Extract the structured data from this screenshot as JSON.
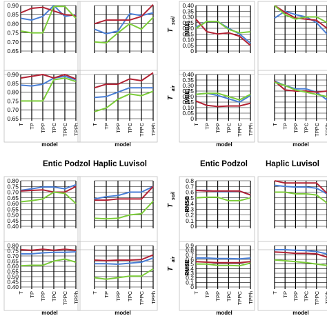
{
  "colors": {
    "blue": "#4a7fd6",
    "red": "#b22234",
    "green": "#7ccc3a",
    "grid": "#000000",
    "frame": "#bfbfbf"
  },
  "headers": [
    "Entic Podzol",
    "Haplic Luvisol",
    "Entic Podzol",
    "Haplic Luvisol"
  ],
  "categories": [
    "T",
    "TP",
    "TPP",
    "TPC",
    "TPPC",
    "TPPh"
  ],
  "xlabel": "model",
  "ylabels": {
    "mbe_soil": {
      "pre": "T",
      "sub": "soil",
      "metric": "|MBE|"
    },
    "mbe_air": {
      "pre": "T",
      "sub": "air",
      "metric": "|MBE|"
    },
    "rmse_soil": {
      "pre": "T",
      "sub": "soil",
      "metric": "RMSE"
    },
    "rmse_air": {
      "pre": "T",
      "sub": "air",
      "metric": "RMSE"
    }
  },
  "chart_data": [
    {
      "id": "ep_rsq_soil",
      "type": "line",
      "panel": "top-left",
      "categories": [
        "T",
        "TP",
        "TPP",
        "TPC",
        "TPPC",
        "TPPh"
      ],
      "ylim": [
        0.65,
        0.9
      ],
      "yticks": [
        0.65,
        0.7,
        0.75,
        0.8,
        0.85,
        0.9
      ],
      "grid": true,
      "series": [
        {
          "color": "blue",
          "values": [
            0.83,
            0.82,
            0.84,
            0.9,
            0.84,
            0.85
          ]
        },
        {
          "color": "red",
          "values": [
            0.86,
            0.885,
            0.89,
            0.87,
            0.85,
            0.845
          ]
        },
        {
          "color": "green",
          "values": [
            0.76,
            0.75,
            0.75,
            0.895,
            0.895,
            0.83
          ]
        }
      ]
    },
    {
      "id": "hl_rsq_soil",
      "type": "line",
      "panel": "top-left-2",
      "categories": [
        "T",
        "TP",
        "TPP",
        "TPC",
        "TPPC",
        "TPPh"
      ],
      "ylim": [
        0.65,
        0.9
      ],
      "yticks": [
        0.65,
        0.7,
        0.75,
        0.8,
        0.85,
        0.9
      ],
      "grid": true,
      "series": [
        {
          "color": "blue",
          "values": [
            0.77,
            0.745,
            0.76,
            0.855,
            0.845,
            0.86
          ]
        },
        {
          "color": "red",
          "values": [
            0.8,
            0.82,
            0.82,
            0.82,
            0.84,
            0.905
          ]
        },
        {
          "color": "green",
          "values": [
            0.7,
            0.695,
            0.75,
            0.8,
            0.77,
            0.835
          ]
        }
      ]
    },
    {
      "id": "ep_mbe_soil",
      "type": "line",
      "panel": "top-right",
      "categories": [
        "T",
        "TP",
        "TPP",
        "TPC",
        "TPPC",
        "TPPh"
      ],
      "ylim": [
        0,
        0.4
      ],
      "yticks": [
        0,
        0.05,
        0.1,
        0.15,
        0.2,
        0.25,
        0.3,
        0.35,
        0.4
      ],
      "grid": true,
      "series": [
        {
          "color": "blue",
          "values": [
            0.21,
            0.26,
            0.26,
            0.2,
            0.15,
            0.07
          ]
        },
        {
          "color": "red",
          "values": [
            0.28,
            0.17,
            0.15,
            0.16,
            0.13,
            0.05
          ]
        },
        {
          "color": "green",
          "values": [
            0.2,
            0.26,
            0.26,
            0.19,
            0.16,
            0.17
          ]
        }
      ]
    },
    {
      "id": "hl_mbe_soil",
      "type": "line",
      "panel": "top-right-2",
      "categories": [
        "T",
        "TP",
        "TPP",
        "TPC",
        "TPPC",
        "TPPh"
      ],
      "ylim": [
        0,
        0.4
      ],
      "yticks": [
        0,
        0.05,
        0.1,
        0.15,
        0.2,
        0.25,
        0.3,
        0.35,
        0.4
      ],
      "grid": true,
      "series": [
        {
          "color": "blue",
          "values": [
            0.29,
            0.35,
            0.32,
            0.3,
            0.25,
            0.15
          ]
        },
        {
          "color": "red",
          "values": [
            0.4,
            0.34,
            0.29,
            0.28,
            0.27,
            0.2
          ]
        },
        {
          "color": "green",
          "values": [
            0.4,
            0.32,
            0.28,
            0.3,
            0.3,
            0.25
          ]
        }
      ]
    },
    {
      "id": "ep_rsq_air",
      "type": "line",
      "panel": "row2-left",
      "categories": [
        "T",
        "TP",
        "TPP",
        "TPC",
        "TPPC",
        "TPPh"
      ],
      "ylim": [
        0.65,
        0.9
      ],
      "yticks": [
        0.65,
        0.7,
        0.75,
        0.8,
        0.85,
        0.9
      ],
      "grid": true,
      "series": [
        {
          "color": "blue",
          "values": [
            0.84,
            0.835,
            0.845,
            0.88,
            0.89,
            0.87
          ]
        },
        {
          "color": "red",
          "values": [
            0.88,
            0.89,
            0.9,
            0.88,
            0.9,
            0.875
          ]
        },
        {
          "color": "green",
          "values": [
            0.75,
            0.75,
            0.75,
            0.87,
            0.88,
            0.86
          ]
        }
      ]
    },
    {
      "id": "hl_rsq_air",
      "type": "line",
      "panel": "row2-left-2",
      "categories": [
        "T",
        "TP",
        "TPP",
        "TPC",
        "TPPC",
        "TPPh"
      ],
      "ylim": [
        0.65,
        0.9
      ],
      "yticks": [
        0.65,
        0.7,
        0.75,
        0.8,
        0.85,
        0.9
      ],
      "grid": true,
      "series": [
        {
          "color": "blue",
          "values": [
            0.77,
            0.775,
            0.8,
            0.825,
            0.825,
            0.825
          ]
        },
        {
          "color": "red",
          "values": [
            0.825,
            0.845,
            0.845,
            0.875,
            0.865,
            0.91
          ]
        },
        {
          "color": "green",
          "values": [
            0.69,
            0.71,
            0.76,
            0.79,
            0.78,
            0.805
          ]
        }
      ]
    },
    {
      "id": "ep_mbe_air",
      "type": "line",
      "panel": "row2-right",
      "categories": [
        "T",
        "TP",
        "TPP",
        "TPC",
        "TPPC",
        "TPPh"
      ],
      "ylim": [
        0,
        0.4
      ],
      "yticks": [
        0,
        0.05,
        0.1,
        0.15,
        0.2,
        0.25,
        0.3,
        0.35,
        0.4
      ],
      "grid": true,
      "series": [
        {
          "color": "blue",
          "values": [
            0.22,
            0.23,
            0.21,
            0.18,
            0.15,
            0.21
          ]
        },
        {
          "color": "red",
          "values": [
            0.16,
            0.12,
            0.11,
            0.115,
            0.115,
            0.14
          ]
        },
        {
          "color": "green",
          "values": [
            0.22,
            0.23,
            0.23,
            0.2,
            0.17,
            0.22
          ]
        }
      ]
    },
    {
      "id": "hl_mbe_air",
      "type": "line",
      "panel": "row2-right-2",
      "categories": [
        "T",
        "TP",
        "TPP",
        "TPC",
        "TPPC",
        "TPPh"
      ],
      "ylim": [
        0,
        0.4
      ],
      "yticks": [
        0,
        0.05,
        0.1,
        0.15,
        0.2,
        0.25,
        0.3,
        0.35,
        0.4
      ],
      "grid": true,
      "series": [
        {
          "color": "blue",
          "values": [
            0.34,
            0.3,
            0.27,
            0.27,
            0.24,
            0.17
          ]
        },
        {
          "color": "red",
          "values": [
            0.34,
            0.26,
            0.25,
            0.25,
            0.24,
            0.25
          ]
        },
        {
          "color": "green",
          "values": [
            0.33,
            0.3,
            0.26,
            0.24,
            0.22,
            0.2
          ]
        }
      ]
    },
    {
      "id": "ep_rsq2_soil",
      "type": "line",
      "panel": "row3-left",
      "categories": [
        "T",
        "TP",
        "TPP",
        "TPC",
        "TPPC",
        "TPPh"
      ],
      "ylim": [
        0.4,
        0.8
      ],
      "yticks": [
        0.4,
        0.45,
        0.5,
        0.55,
        0.6,
        0.65,
        0.7,
        0.75,
        0.8
      ],
      "grid": true,
      "series": [
        {
          "color": "blue",
          "values": [
            0.715,
            0.73,
            0.745,
            0.745,
            0.73,
            0.765
          ]
        },
        {
          "color": "red",
          "values": [
            0.71,
            0.715,
            0.72,
            0.7,
            0.7,
            0.75
          ]
        },
        {
          "color": "green",
          "values": [
            0.615,
            0.625,
            0.64,
            0.7,
            0.69,
            0.6
          ]
        }
      ]
    },
    {
      "id": "hl_rsq2_soil",
      "type": "line",
      "panel": "row3-left-2",
      "categories": [
        "T",
        "TP",
        "TPP",
        "TPC",
        "TPPC",
        "TPPh"
      ],
      "ylim": [
        0.4,
        0.8
      ],
      "yticks": [
        0.4,
        0.45,
        0.5,
        0.55,
        0.6,
        0.65,
        0.7,
        0.75,
        0.8
      ],
      "grid": true,
      "series": [
        {
          "color": "blue",
          "values": [
            0.64,
            0.66,
            0.67,
            0.7,
            0.7,
            0.75
          ]
        },
        {
          "color": "red",
          "values": [
            0.63,
            0.63,
            0.64,
            0.64,
            0.64,
            0.75
          ]
        },
        {
          "color": "green",
          "values": [
            0.47,
            0.465,
            0.47,
            0.5,
            0.51,
            0.62
          ]
        }
      ]
    },
    {
      "id": "ep_rmse_soil",
      "type": "line",
      "panel": "row3-right",
      "categories": [
        "T",
        "TP",
        "TPP",
        "TPC",
        "TPPC",
        "TPPh"
      ],
      "ylim": [
        0,
        0.8
      ],
      "yticks": [
        0,
        0.1,
        0.2,
        0.3,
        0.4,
        0.5,
        0.6,
        0.7,
        0.8
      ],
      "grid": true,
      "series": [
        {
          "color": "blue",
          "values": [
            0.63,
            0.63,
            0.61,
            0.61,
            0.62,
            0.55
          ]
        },
        {
          "color": "red",
          "values": [
            0.63,
            0.62,
            0.62,
            0.62,
            0.62,
            0.55
          ]
        },
        {
          "color": "green",
          "values": [
            0.5,
            0.51,
            0.51,
            0.45,
            0.45,
            0.5
          ]
        }
      ]
    },
    {
      "id": "hl_rmse_soil",
      "type": "line",
      "panel": "row3-right-2",
      "categories": [
        "T",
        "TP",
        "TPP",
        "TPC",
        "TPPC",
        "TPPh"
      ],
      "ylim": [
        0,
        0.8
      ],
      "yticks": [
        0,
        0.1,
        0.2,
        0.3,
        0.4,
        0.5,
        0.6,
        0.7,
        0.8
      ],
      "grid": true,
      "series": [
        {
          "color": "blue",
          "values": [
            0.72,
            0.7,
            0.69,
            0.69,
            0.67,
            0.57
          ]
        },
        {
          "color": "red",
          "values": [
            0.8,
            0.76,
            0.76,
            0.76,
            0.76,
            0.58
          ]
        },
        {
          "color": "green",
          "values": [
            0.6,
            0.6,
            0.57,
            0.57,
            0.55,
            0.41
          ]
        }
      ]
    },
    {
      "id": "ep_rsq2_air",
      "type": "line",
      "panel": "bottom-left",
      "categories": [
        "T",
        "TP",
        "TPP",
        "TPC",
        "TPPC",
        "TPPh"
      ],
      "ylim": [
        0.4,
        0.8
      ],
      "yticks": [
        0.4,
        0.45,
        0.5,
        0.55,
        0.6,
        0.65,
        0.7,
        0.75,
        0.8
      ],
      "grid": true,
      "series": [
        {
          "color": "blue",
          "values": [
            0.72,
            0.72,
            0.73,
            0.735,
            0.735,
            0.74
          ]
        },
        {
          "color": "red",
          "values": [
            0.76,
            0.755,
            0.765,
            0.755,
            0.765,
            0.755
          ]
        },
        {
          "color": "green",
          "values": [
            0.605,
            0.61,
            0.61,
            0.65,
            0.67,
            0.64
          ]
        }
      ]
    },
    {
      "id": "hl_rsq2_air",
      "type": "line",
      "panel": "bottom-left-2",
      "categories": [
        "T",
        "TP",
        "TPP",
        "TPC",
        "TPPC",
        "TPPh"
      ],
      "ylim": [
        0.4,
        0.8
      ],
      "yticks": [
        0.4,
        0.45,
        0.5,
        0.55,
        0.6,
        0.65,
        0.7,
        0.75,
        0.8
      ],
      "grid": true,
      "series": [
        {
          "color": "blue",
          "values": [
            0.625,
            0.625,
            0.62,
            0.63,
            0.64,
            0.68
          ]
        },
        {
          "color": "red",
          "values": [
            0.66,
            0.655,
            0.66,
            0.66,
            0.665,
            0.71
          ]
        },
        {
          "color": "green",
          "values": [
            0.49,
            0.475,
            0.49,
            0.505,
            0.505,
            0.575
          ]
        }
      ]
    },
    {
      "id": "ep_rmse_air",
      "type": "line",
      "panel": "bottom-right",
      "categories": [
        "T",
        "TP",
        "TPP",
        "TPC",
        "TPPC",
        "TPPh"
      ],
      "ylim": [
        0,
        0.9
      ],
      "yticks": [
        0,
        0.1,
        0.2,
        0.3,
        0.4,
        0.5,
        0.6,
        0.7,
        0.8,
        0.9
      ],
      "grid": true,
      "series": [
        {
          "color": "blue",
          "values": [
            0.63,
            0.63,
            0.62,
            0.62,
            0.61,
            0.63
          ]
        },
        {
          "color": "red",
          "values": [
            0.55,
            0.54,
            0.53,
            0.53,
            0.53,
            0.55
          ]
        },
        {
          "color": "green",
          "values": [
            0.5,
            0.5,
            0.47,
            0.47,
            0.46,
            0.52
          ]
        }
      ]
    },
    {
      "id": "hl_rmse_air",
      "type": "line",
      "panel": "bottom-right-2",
      "categories": [
        "T",
        "TP",
        "TPP",
        "TPC",
        "TPPC",
        "TPPh"
      ],
      "ylim": [
        0,
        0.9
      ],
      "yticks": [
        0,
        0.1,
        0.2,
        0.3,
        0.4,
        0.5,
        0.6,
        0.7,
        0.8,
        0.9
      ],
      "grid": true,
      "series": [
        {
          "color": "blue",
          "values": [
            0.81,
            0.81,
            0.8,
            0.79,
            0.77,
            0.72
          ]
        },
        {
          "color": "red",
          "values": [
            0.76,
            0.75,
            0.73,
            0.73,
            0.72,
            0.65
          ]
        },
        {
          "color": "green",
          "values": [
            0.59,
            0.57,
            0.55,
            0.53,
            0.5,
            0.47
          ]
        }
      ]
    }
  ]
}
